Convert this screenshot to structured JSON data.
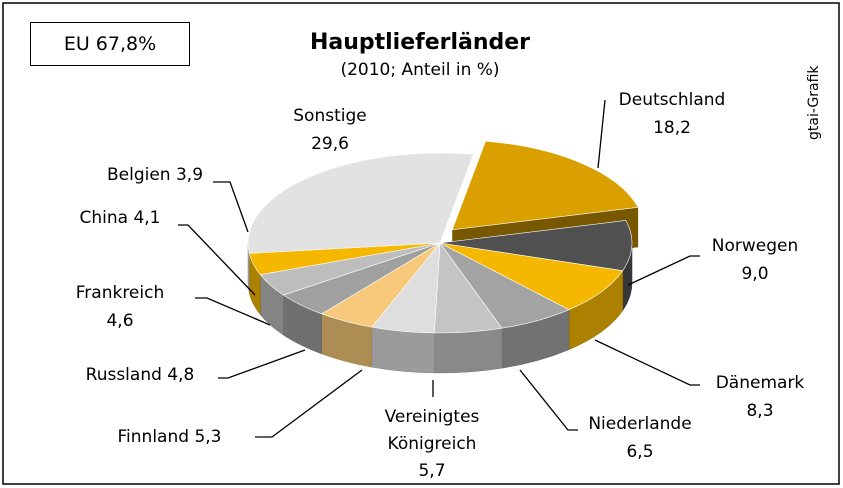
{
  "chart_data": {
    "type": "pie3d",
    "title": "Hauptlieferländer",
    "subtitle": "(2010; Anteil in %)",
    "annotation": "EU 67,8%",
    "source": "gtai-Grafik",
    "categories": [
      "Deutschland",
      "Norwegen",
      "Dänemark",
      "Niederlande",
      "Vereinigtes Königreich",
      "Finnland",
      "Russland",
      "Frankreich",
      "China",
      "Belgien",
      "Sonstige"
    ],
    "values": [
      18.2,
      9.0,
      8.3,
      6.5,
      5.7,
      5.3,
      4.8,
      4.6,
      4.1,
      3.9,
      29.6
    ],
    "value_labels": [
      "18,2",
      "9,0",
      "8,3",
      "6,5",
      "5,7",
      "5,3",
      "4,8",
      "4,6",
      "4,1",
      "3,9",
      "29,6"
    ],
    "colors": [
      "#d9a000",
      "#505050",
      "#f5b700",
      "#a3a3a3",
      "#c4c4c4",
      "#dedede",
      "#f8c97a",
      "#a0a0a0",
      "#bdbdbd",
      "#f5b700",
      "#e2e2e2"
    ]
  }
}
